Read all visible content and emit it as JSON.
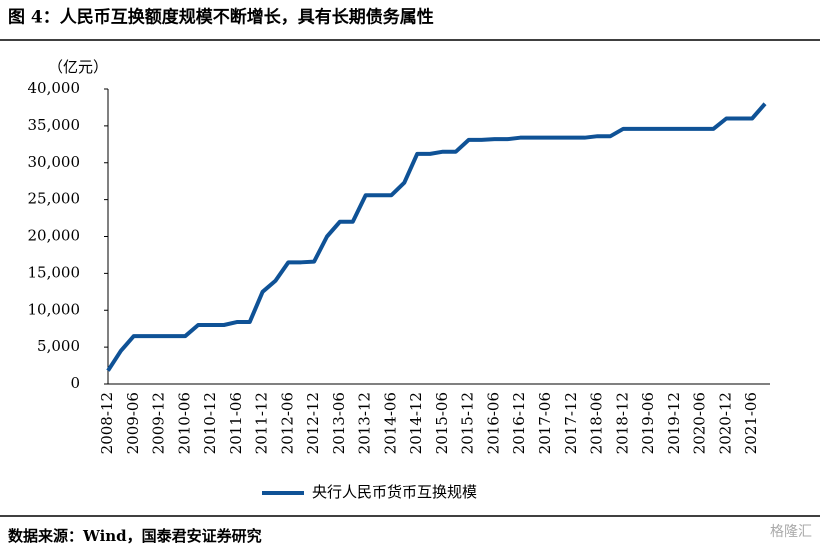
{
  "chart_data": {
    "type": "line",
    "title": "图 4：人民币互换额度规模不断增长，具有长期债务属性",
    "y_unit": "（亿元）",
    "source": "数据来源：Wind，国泰君安证券研究",
    "watermark": "格隆汇",
    "categories": [
      "2008-12",
      null,
      "2009-06",
      null,
      "2009-12",
      null,
      "2010-06",
      null,
      "2010-12",
      null,
      "2011-06",
      null,
      "2011-12",
      null,
      "2012-06",
      null,
      "2012-12",
      null,
      "2013-06",
      null,
      "2013-12",
      null,
      "2014-06",
      null,
      "2014-12",
      null,
      "2015-06",
      null,
      "2015-12",
      null,
      "2016-06",
      null,
      "2016-12",
      null,
      "2017-06",
      null,
      "2017-12",
      null,
      "2018-06",
      null,
      "2018-12",
      null,
      "2019-06",
      null,
      "2019-12",
      null,
      "2020-06",
      null,
      "2020-12",
      null,
      "2021-06",
      null
    ],
    "series": [
      {
        "name": "央行人民币货币互换规模",
        "color": "#0f5296",
        "values": [
          1800,
          4500,
          6500,
          6500,
          6500,
          6500,
          6500,
          8000,
          8000,
          8000,
          8400,
          8400,
          12500,
          14000,
          16500,
          16500,
          16600,
          20000,
          22000,
          22000,
          25600,
          25600,
          25600,
          27300,
          31200,
          31200,
          31500,
          31500,
          33100,
          33100,
          33200,
          33200,
          33400,
          33400,
          33400,
          33400,
          33400,
          33400,
          33600,
          33600,
          34600,
          34600,
          34600,
          34600,
          34600,
          34600,
          34600,
          34600,
          36000,
          36000,
          36000,
          38000
        ]
      }
    ],
    "ylim": [
      0,
      40000
    ],
    "yticks": [
      0,
      {
        "value": 5000,
        "label": "5,000"
      },
      {
        "value": 10000,
        "label": "10,000"
      },
      {
        "value": 15000,
        "label": "15,000"
      },
      {
        "value": 20000,
        "label": "20,000"
      },
      {
        "value": 25000,
        "label": "25,000"
      },
      {
        "value": 30000,
        "label": "30,000"
      },
      {
        "value": 35000,
        "label": "35,000"
      },
      {
        "value": 40000,
        "label": "40,000"
      }
    ],
    "grid": false,
    "legend": "bottom"
  }
}
